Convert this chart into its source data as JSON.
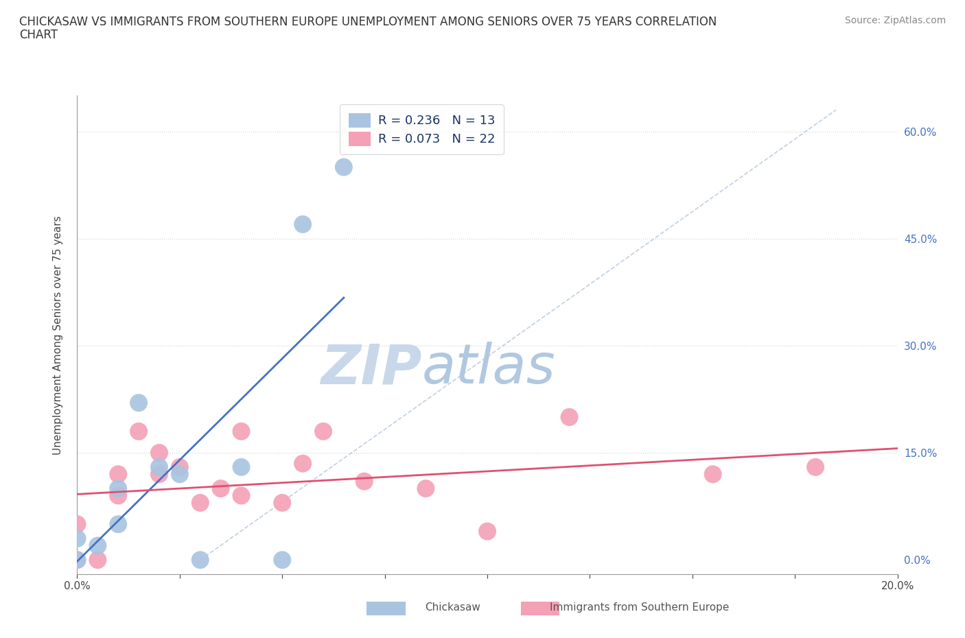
{
  "title_line1": "CHICKASAW VS IMMIGRANTS FROM SOUTHERN EUROPE UNEMPLOYMENT AMONG SENIORS OVER 75 YEARS CORRELATION",
  "title_line2": "CHART",
  "source": "Source: ZipAtlas.com",
  "ylabel": "Unemployment Among Seniors over 75 years",
  "xlim": [
    0.0,
    0.2
  ],
  "ylim": [
    -0.02,
    0.65
  ],
  "yticks": [
    0.0,
    0.15,
    0.3,
    0.45,
    0.6
  ],
  "ytick_labels": [
    "0.0%",
    "15.0%",
    "30.0%",
    "45.0%",
    "60.0%"
  ],
  "xticks": [
    0.0,
    0.025,
    0.05,
    0.075,
    0.1,
    0.125,
    0.15,
    0.175,
    0.2
  ],
  "xtick_labels_show": [
    "0.0%",
    "",
    "",
    "",
    "",
    "",
    "",
    "",
    "20.0%"
  ],
  "chickasaw_color": "#a8c4e0",
  "southern_europe_color": "#f4a0b5",
  "trend_blue": "#4472c4",
  "trend_pink": "#e05070",
  "dash_color": "#b0c4d8",
  "watermark_zip": "#cddaea",
  "watermark_atlas": "#b8cce4",
  "R_chickasaw": 0.236,
  "N_chickasaw": 13,
  "R_southern": 0.073,
  "N_southern": 22,
  "chickasaw_x": [
    0.0,
    0.0,
    0.005,
    0.01,
    0.01,
    0.015,
    0.02,
    0.025,
    0.03,
    0.04,
    0.05,
    0.055,
    0.065
  ],
  "chickasaw_y": [
    0.0,
    0.03,
    0.02,
    0.05,
    0.1,
    0.22,
    0.13,
    0.12,
    0.0,
    0.13,
    0.0,
    0.47,
    0.55
  ],
  "southern_x": [
    0.0,
    0.0,
    0.005,
    0.01,
    0.01,
    0.015,
    0.02,
    0.02,
    0.025,
    0.03,
    0.035,
    0.04,
    0.04,
    0.05,
    0.055,
    0.06,
    0.07,
    0.085,
    0.1,
    0.12,
    0.155,
    0.18
  ],
  "southern_y": [
    0.0,
    0.05,
    0.0,
    0.09,
    0.12,
    0.18,
    0.12,
    0.15,
    0.13,
    0.08,
    0.1,
    0.09,
    0.18,
    0.08,
    0.135,
    0.18,
    0.11,
    0.1,
    0.04,
    0.2,
    0.12,
    0.13
  ],
  "legend_label_color": "#1a3366",
  "bottom_legend_color": "#555555"
}
